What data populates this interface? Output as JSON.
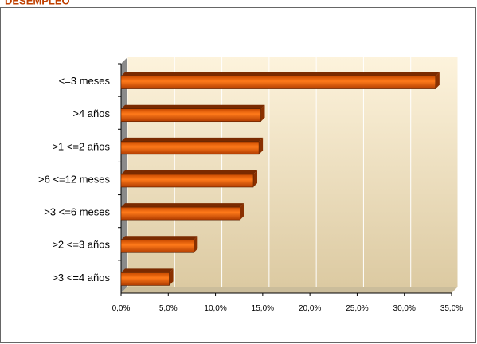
{
  "chart_data": {
    "type": "bar",
    "orientation": "horizontal",
    "title": "DESEMPLEO",
    "categories": [
      "<=3 meses",
      ">4 años",
      ">1 <=2 años",
      ">6 <=12 meses",
      ">3 <=6 meses",
      ">2 <=3 años",
      ">3 <=4 años"
    ],
    "values": [
      33.3,
      14.8,
      14.6,
      14.0,
      12.6,
      7.7,
      5.1
    ],
    "color": "#e8620f",
    "xlim": [
      0,
      35
    ],
    "xticks": [
      {
        "value": 0,
        "label": "0,0%"
      },
      {
        "value": 5,
        "label": "5,0%"
      },
      {
        "value": 10,
        "label": "10,0%"
      },
      {
        "value": 15,
        "label": "15,0%"
      },
      {
        "value": 20,
        "label": "20,0%"
      },
      {
        "value": 25,
        "label": "25,0%"
      },
      {
        "value": 30,
        "label": "30,0%"
      },
      {
        "value": 35,
        "label": "35,0%"
      }
    ],
    "grid": true
  }
}
